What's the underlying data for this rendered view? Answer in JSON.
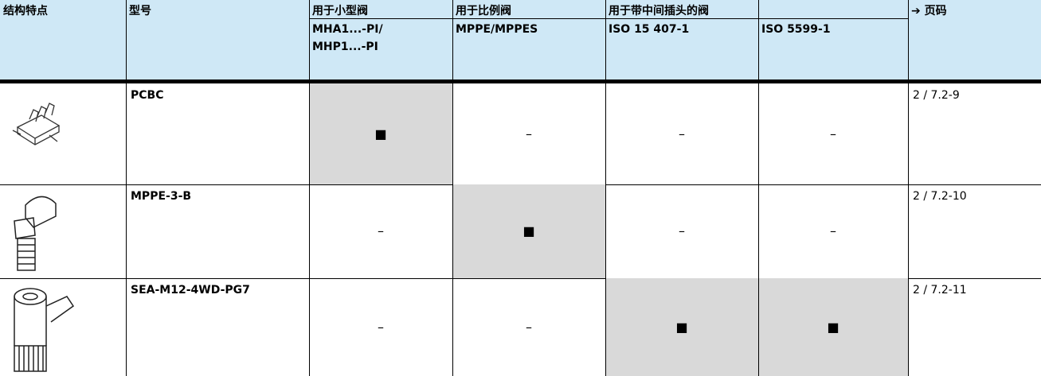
{
  "header": {
    "row1": [
      "结构特点",
      "型号",
      "用于小型阀",
      "用于比例阀",
      "用于带中间插头的阀",
      "➔ 页码"
    ],
    "row2": [
      [
        "MHA1...-PI/",
        "MHP1...-PI"
      ],
      [
        "MPPE/MPPES"
      ],
      [
        "ISO 15 407-1"
      ],
      [
        "ISO 5599-1"
      ]
    ]
  },
  "rows": [
    {
      "model": "PCBC",
      "cells": [
        {
          "text": "■",
          "highlight": true
        },
        {
          "text": "–",
          "highlight": false
        },
        {
          "text": "–",
          "highlight": false
        },
        {
          "text": "–",
          "highlight": false
        }
      ],
      "page": "2 / 7.2-9"
    },
    {
      "model": "MPPE-3-B",
      "cells": [
        {
          "text": "–",
          "highlight": false
        },
        {
          "text": "■",
          "highlight": true
        },
        {
          "text": "–",
          "highlight": false
        },
        {
          "text": "–",
          "highlight": false
        }
      ],
      "page": "2 / 7.2-10"
    },
    {
      "model": "SEA-M12-4WD-PG7",
      "cells": [
        {
          "text": "–",
          "highlight": false
        },
        {
          "text": "–",
          "highlight": false
        },
        {
          "text": "■",
          "highlight": true
        },
        {
          "text": "■",
          "highlight": true
        }
      ],
      "page": "2 / 7.2-11"
    }
  ]
}
